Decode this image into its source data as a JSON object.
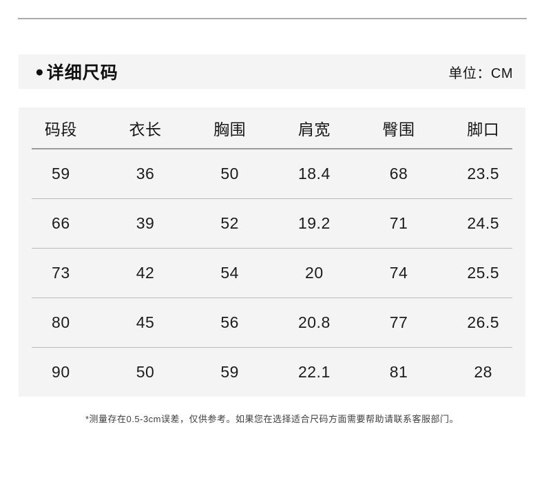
{
  "header": {
    "title": "详细尺码",
    "unit_label": "单位：CM"
  },
  "icons": {
    "bullet": "●"
  },
  "table": {
    "headers": [
      "码段",
      "衣长",
      "胸围",
      "肩宽",
      "臀围",
      "脚口"
    ],
    "rows": [
      [
        "59",
        "36",
        "50",
        "18.4",
        "68",
        "23.5"
      ],
      [
        "66",
        "39",
        "52",
        "19.2",
        "71",
        "24.5"
      ],
      [
        "73",
        "42",
        "54",
        "20",
        "74",
        "25.5"
      ],
      [
        "80",
        "45",
        "56",
        "20.8",
        "77",
        "26.5"
      ],
      [
        "90",
        "50",
        "59",
        "22.1",
        "81",
        "28"
      ]
    ]
  },
  "footnote": "*测量存在0.5-3cm误差，仅供参考。如果您在选择适合尺码方面需要帮助请联系客服部门。",
  "colors": {
    "panel_bg": "#f4f4f4",
    "top_rule": "#ababab",
    "header_underline": "#9a9a9a",
    "row_separator": "#b9b9b9",
    "text": "#1a1a1a"
  },
  "chart_data": {
    "type": "table",
    "title": "详细尺码",
    "unit": "CM",
    "columns": [
      "码段",
      "衣长",
      "胸围",
      "肩宽",
      "臀围",
      "脚口"
    ],
    "rows": [
      [
        59,
        36,
        50,
        18.4,
        68,
        23.5
      ],
      [
        66,
        39,
        52,
        19.2,
        71,
        24.5
      ],
      [
        73,
        42,
        54,
        20,
        74,
        25.5
      ],
      [
        80,
        45,
        56,
        20.8,
        77,
        26.5
      ],
      [
        90,
        50,
        59,
        22.1,
        81,
        28
      ]
    ],
    "note": "*测量存在0.5-3cm误差，仅供参考。如果您在选择适合尺码方面需要帮助请联系客服部门。"
  }
}
